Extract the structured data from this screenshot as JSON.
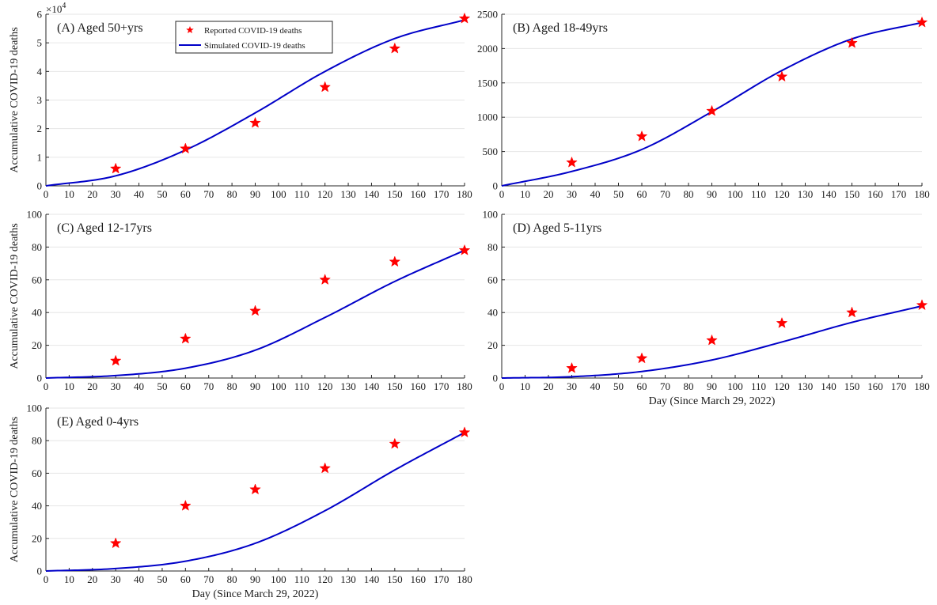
{
  "figure": {
    "xlabel": "Day (Since March 29, 2022)",
    "ylabel": "Accumulative COVID-19 deaths",
    "legend": {
      "reported": "Reported COVID-19 deaths",
      "simulated": "Simulated COVID-19 deaths"
    },
    "colors": {
      "reported": "#ff0000",
      "simulated": "#0000c8",
      "grid": "#e6e6e6"
    },
    "exponent_label": "×10",
    "exponent_power": "4"
  },
  "chart_data": [
    {
      "type": "line",
      "title": "(A) Aged 50+yrs",
      "xlim": [
        0,
        180
      ],
      "ylim": [
        0,
        60000
      ],
      "xticks": [
        0,
        10,
        20,
        30,
        40,
        50,
        60,
        70,
        80,
        90,
        100,
        110,
        120,
        130,
        140,
        150,
        160,
        170,
        180
      ],
      "yticks": [
        0,
        10000,
        20000,
        30000,
        40000,
        50000,
        60000
      ],
      "ytick_labels": [
        "0",
        "1",
        "2",
        "3",
        "4",
        "5",
        "6"
      ],
      "ylabel": "Accumulative COVID-19 deaths",
      "xlabel": "",
      "grid": true,
      "legend": "top-left",
      "series": [
        {
          "name": "Reported COVID-19 deaths",
          "kind": "scatter",
          "x": [
            30,
            60,
            90,
            120,
            150,
            180
          ],
          "y": [
            6000,
            13000,
            22000,
            34500,
            48000,
            58500
          ]
        },
        {
          "name": "Simulated COVID-19 deaths",
          "kind": "line",
          "x": [
            0,
            30,
            60,
            90,
            120,
            150,
            180
          ],
          "y": [
            0,
            3500,
            12500,
            25500,
            40000,
            51500,
            58000
          ]
        }
      ]
    },
    {
      "type": "line",
      "title": "(B) Aged 18-49yrs",
      "xlim": [
        0,
        180
      ],
      "ylim": [
        0,
        2500
      ],
      "xticks": [
        0,
        10,
        20,
        30,
        40,
        50,
        60,
        70,
        80,
        90,
        100,
        110,
        120,
        130,
        140,
        150,
        160,
        170,
        180
      ],
      "yticks": [
        0,
        500,
        1000,
        1500,
        2000,
        2500
      ],
      "ytick_labels": [
        "0",
        "500",
        "1000",
        "1500",
        "2000",
        "2500"
      ],
      "ylabel": "",
      "xlabel": "",
      "grid": true,
      "series": [
        {
          "kind": "scatter",
          "x": [
            30,
            60,
            90,
            120,
            150,
            180
          ],
          "y": [
            340,
            720,
            1090,
            1590,
            2080,
            2380
          ]
        },
        {
          "kind": "line",
          "x": [
            0,
            30,
            60,
            90,
            120,
            150,
            180
          ],
          "y": [
            0,
            210,
            530,
            1080,
            1680,
            2140,
            2380
          ]
        }
      ]
    },
    {
      "type": "line",
      "title": "(C) Aged 12-17yrs",
      "xlim": [
        0,
        180
      ],
      "ylim": [
        0,
        100
      ],
      "xticks": [
        0,
        10,
        20,
        30,
        40,
        50,
        60,
        70,
        80,
        90,
        100,
        110,
        120,
        130,
        140,
        150,
        160,
        170,
        180
      ],
      "yticks": [
        0,
        20,
        40,
        60,
        80,
        100
      ],
      "ytick_labels": [
        "0",
        "20",
        "40",
        "60",
        "80",
        "100"
      ],
      "ylabel": "Accumulative COVID-19 deaths",
      "xlabel": "",
      "grid": true,
      "series": [
        {
          "kind": "scatter",
          "x": [
            30,
            60,
            90,
            120,
            150,
            180
          ],
          "y": [
            10.5,
            24,
            41,
            60,
            71,
            78
          ]
        },
        {
          "kind": "line",
          "x": [
            0,
            30,
            60,
            90,
            120,
            150,
            180
          ],
          "y": [
            0,
            1.5,
            6,
            17,
            37,
            59,
            78
          ]
        }
      ]
    },
    {
      "type": "line",
      "title": "(D) Aged 5-11yrs",
      "xlim": [
        0,
        180
      ],
      "ylim": [
        0,
        100
      ],
      "xticks": [
        0,
        10,
        20,
        30,
        40,
        50,
        60,
        70,
        80,
        90,
        100,
        110,
        120,
        130,
        140,
        150,
        160,
        170,
        180
      ],
      "yticks": [
        0,
        20,
        40,
        60,
        80,
        100
      ],
      "ytick_labels": [
        "0",
        "20",
        "40",
        "60",
        "80",
        "100"
      ],
      "ylabel": "",
      "xlabel": "Day (Since March 29, 2022)",
      "grid": true,
      "series": [
        {
          "kind": "scatter",
          "x": [
            30,
            60,
            90,
            120,
            150,
            180
          ],
          "y": [
            6,
            12,
            23,
            33.5,
            40,
            44.5
          ]
        },
        {
          "kind": "line",
          "x": [
            0,
            30,
            60,
            90,
            120,
            150,
            180
          ],
          "y": [
            0,
            0.8,
            4,
            11,
            22,
            34,
            44
          ]
        }
      ]
    },
    {
      "type": "line",
      "title": "(E) Aged 0-4yrs",
      "xlim": [
        0,
        180
      ],
      "ylim": [
        0,
        100
      ],
      "xticks": [
        0,
        10,
        20,
        30,
        40,
        50,
        60,
        70,
        80,
        90,
        100,
        110,
        120,
        130,
        140,
        150,
        160,
        170,
        180
      ],
      "yticks": [
        0,
        20,
        40,
        60,
        80,
        100
      ],
      "ytick_labels": [
        "0",
        "20",
        "40",
        "60",
        "80",
        "100"
      ],
      "ylabel": "Accumulative COVID-19 deaths",
      "xlabel": "Day (Since March 29, 2022)",
      "grid": true,
      "series": [
        {
          "kind": "scatter",
          "x": [
            30,
            60,
            90,
            120,
            150,
            180
          ],
          "y": [
            17,
            40,
            50,
            63,
            78,
            85
          ]
        },
        {
          "kind": "line",
          "x": [
            0,
            30,
            60,
            90,
            120,
            150,
            180
          ],
          "y": [
            0,
            1.5,
            6,
            17,
            37,
            62,
            85
          ]
        }
      ]
    }
  ]
}
